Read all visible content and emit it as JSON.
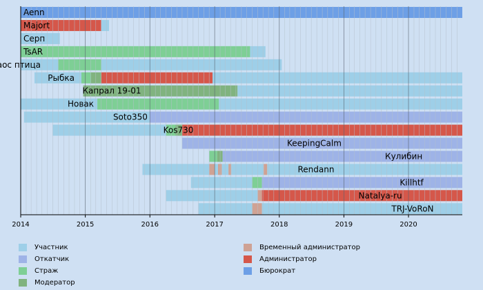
{
  "chart_data": {
    "type": "gantt",
    "x_ticks": [
      "2014",
      "2015",
      "2016",
      "2017",
      "2018",
      "2019",
      "2020"
    ],
    "x_range": [
      "2014-01-01",
      "2020-10-31"
    ],
    "grid": "vertical: yearly major lines, monthly minor lines",
    "roles": {
      "participant": {
        "label": "Участник",
        "color": "#9ecfe8"
      },
      "rollbacker": {
        "label": "Откатчик",
        "color": "#9eb3e7"
      },
      "patroller": {
        "label": "Страж",
        "color": "#7ecf95"
      },
      "moderator": {
        "label": "Модератор",
        "color": "#80b37f"
      },
      "temp_admin": {
        "label": "Временный администратор",
        "color": "#cfa294"
      },
      "admin": {
        "label": "Администратор",
        "color": "#d5574a"
      },
      "bureaucrat": {
        "label": "Бюрократ",
        "color": "#6d9fe6"
      }
    },
    "legend_order": [
      "participant",
      "temp_admin",
      "rollbacker",
      "admin",
      "patroller",
      "bureaucrat",
      "moderator"
    ],
    "users": [
      {
        "name": "Aenn",
        "label_align": "left",
        "segments": [
          {
            "role": "bureaucrat",
            "from": "2014-01-01",
            "to": "2020-10-31"
          }
        ]
      },
      {
        "name": "Majort",
        "label_align": "left",
        "segments": [
          {
            "role": "admin",
            "from": "2014-01-01",
            "to": "2015-04-01"
          },
          {
            "role": "participant",
            "from": "2015-04-01",
            "to": "2015-05-15"
          }
        ]
      },
      {
        "name": "Серп",
        "label_align": "left",
        "segments": [
          {
            "role": "participant",
            "from": "2014-01-01",
            "to": "2014-08-10"
          }
        ]
      },
      {
        "name": "TsAR",
        "label_align": "left",
        "segments": [
          {
            "role": "patroller",
            "from": "2014-01-01",
            "to": "2017-07-20"
          },
          {
            "role": "participant",
            "from": "2017-07-20",
            "to": "2017-10-15"
          }
        ]
      },
      {
        "name": "Хаос птица",
        "label_align": "right",
        "segments": [
          {
            "role": "participant",
            "from": "2014-01-01",
            "to": "2014-08-01"
          },
          {
            "role": "patroller",
            "from": "2014-08-01",
            "to": "2015-04-01"
          },
          {
            "role": "participant",
            "from": "2015-04-01",
            "to": "2018-01-15"
          }
        ]
      },
      {
        "name": "Рыбка",
        "label_align": "right",
        "segments": [
          {
            "role": "participant",
            "from": "2014-03-20",
            "to": "2014-12-10"
          },
          {
            "role": "patroller",
            "from": "2014-12-10",
            "to": "2015-02-01"
          },
          {
            "role": "moderator",
            "from": "2015-02-01",
            "to": "2015-04-01"
          },
          {
            "role": "admin",
            "from": "2015-04-01",
            "to": "2016-12-20"
          },
          {
            "role": "participant",
            "from": "2016-12-20",
            "to": "2020-10-31"
          }
        ]
      },
      {
        "name": "Капрал 19-01",
        "label_align": "right",
        "segments": [
          {
            "role": "moderator",
            "from": "2014-12-20",
            "to": "2017-05-10"
          },
          {
            "role": "participant",
            "from": "2017-05-10",
            "to": "2020-10-31"
          }
        ]
      },
      {
        "name": "Новак",
        "label_align": "right",
        "segments": [
          {
            "role": "participant",
            "from": "2014-01-01",
            "to": "2015-03-10"
          },
          {
            "role": "patroller",
            "from": "2015-03-10",
            "to": "2017-01-25"
          },
          {
            "role": "participant",
            "from": "2017-01-25",
            "to": "2020-10-31"
          }
        ]
      },
      {
        "name": "Soto350",
        "label_align": "right",
        "segments": [
          {
            "role": "participant",
            "from": "2014-01-20",
            "to": "2015-12-31"
          },
          {
            "role": "rollbacker",
            "from": "2015-12-31",
            "to": "2020-10-31"
          }
        ]
      },
      {
        "name": "Kos730",
        "label_align": "right",
        "segments": [
          {
            "role": "participant",
            "from": "2014-07-01",
            "to": "2016-04-01"
          },
          {
            "role": "patroller",
            "from": "2016-04-01",
            "to": "2016-05-25"
          },
          {
            "role": "moderator",
            "from": "2016-05-25",
            "to": "2016-07-01"
          },
          {
            "role": "admin",
            "from": "2016-07-01",
            "to": "2020-10-31"
          }
        ]
      },
      {
        "name": "KeepingCalm",
        "label_align": "right",
        "segments": [
          {
            "role": "rollbacker",
            "from": "2016-07-01",
            "to": "2020-10-31"
          }
        ]
      },
      {
        "name": "Кулибин",
        "label_align": "right",
        "segments": [
          {
            "role": "patroller",
            "from": "2016-12-01",
            "to": "2017-01-15"
          },
          {
            "role": "moderator",
            "from": "2017-01-15",
            "to": "2017-02-15"
          },
          {
            "role": "rollbacker",
            "from": "2017-02-15",
            "to": "2020-10-31"
          }
        ]
      },
      {
        "name": "Rendann",
        "label_align": "right",
        "segments": [
          {
            "role": "participant",
            "from": "2015-11-20",
            "to": "2016-12-01"
          },
          {
            "role": "temp_admin",
            "from": "2016-12-01",
            "to": "2017-01-01"
          },
          {
            "role": "participant",
            "from": "2017-01-01",
            "to": "2017-01-20"
          },
          {
            "role": "temp_admin",
            "from": "2017-01-20",
            "to": "2017-02-10"
          },
          {
            "role": "participant",
            "from": "2017-02-10",
            "to": "2017-03-20"
          },
          {
            "role": "temp_admin",
            "from": "2017-03-20",
            "to": "2017-04-05"
          },
          {
            "role": "participant",
            "from": "2017-04-05",
            "to": "2017-10-05"
          },
          {
            "role": "temp_admin",
            "from": "2017-10-05",
            "to": "2017-10-25"
          },
          {
            "role": "participant",
            "from": "2017-10-25",
            "to": "2020-10-31"
          }
        ]
      },
      {
        "name": "Killhtf",
        "label_align": "right",
        "segments": [
          {
            "role": "participant",
            "from": "2016-08-20",
            "to": "2017-08-01"
          },
          {
            "role": "patroller",
            "from": "2017-08-01",
            "to": "2017-09-25"
          },
          {
            "role": "rollbacker",
            "from": "2017-09-25",
            "to": "2020-10-31"
          }
        ]
      },
      {
        "name": "Natalya-ru",
        "label_align": "right",
        "segments": [
          {
            "role": "participant",
            "from": "2016-04-01",
            "to": "2017-09-01"
          },
          {
            "role": "temp_admin",
            "from": "2017-09-01",
            "to": "2017-09-25"
          },
          {
            "role": "admin",
            "from": "2017-09-25",
            "to": "2020-10-31"
          }
        ]
      },
      {
        "name": "TRJ-VoRoN",
        "label_align": "right",
        "segments": [
          {
            "role": "participant",
            "from": "2016-10-01",
            "to": "2017-08-01"
          },
          {
            "role": "temp_admin",
            "from": "2017-08-01",
            "to": "2017-09-25"
          },
          {
            "role": "participant",
            "from": "2017-09-25",
            "to": "2020-10-31"
          }
        ]
      }
    ]
  }
}
